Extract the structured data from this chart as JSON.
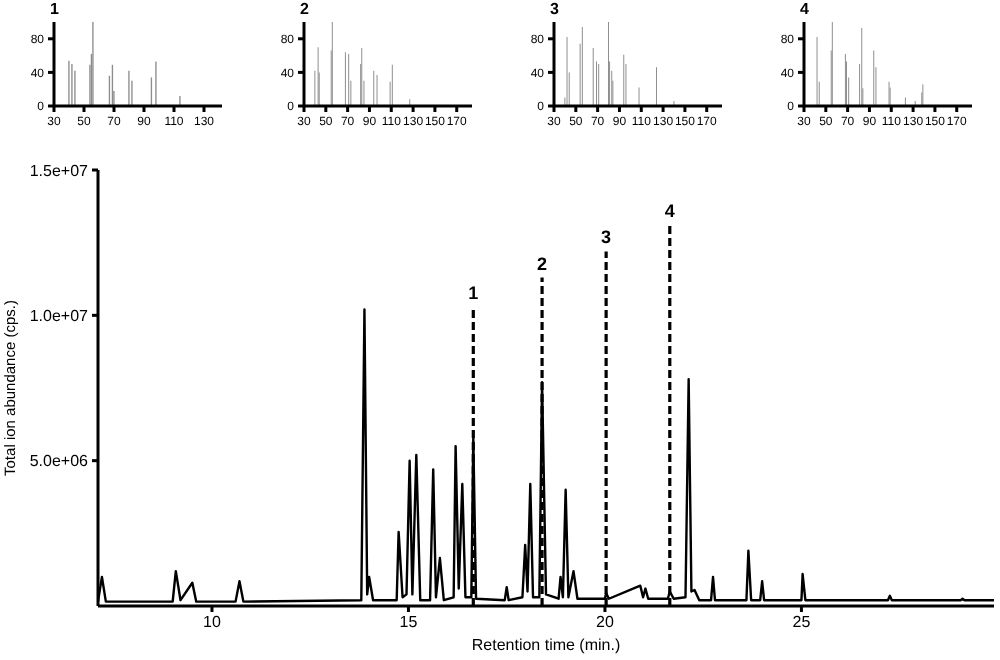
{
  "chart_data": [
    {
      "type": "bar",
      "title": "1",
      "x": [
        40,
        42,
        44,
        54,
        55,
        56,
        67,
        69,
        70,
        80,
        82,
        95,
        98,
        114
      ],
      "values": [
        54,
        50,
        42,
        49,
        62,
        100,
        36,
        49,
        18,
        42,
        30,
        34,
        53,
        12
      ],
      "color": "#8c8c8c",
      "xlim": [
        30,
        142
      ],
      "ylim": [
        0,
        100
      ],
      "xticks": [
        30,
        50,
        70,
        90,
        110,
        130
      ],
      "yticks": [
        0,
        40,
        80
      ]
    },
    {
      "type": "bar",
      "title": "2",
      "x": [
        40,
        43,
        44,
        55,
        56,
        68,
        71,
        73,
        82,
        83,
        85,
        94,
        97,
        109,
        111,
        127
      ],
      "values": [
        42,
        70,
        40,
        66,
        100,
        64,
        62,
        30,
        50,
        69,
        30,
        42,
        37,
        29,
        49,
        8
      ],
      "color": "#8c8c8c",
      "xlim": [
        30,
        184
      ],
      "ylim": [
        0,
        100
      ],
      "xticks": [
        30,
        50,
        70,
        90,
        110,
        130,
        150,
        170
      ],
      "yticks": [
        0,
        40,
        80
      ]
    },
    {
      "type": "bar",
      "title": "3",
      "x": [
        40,
        42,
        44,
        54,
        56,
        66,
        69,
        71,
        80,
        81,
        83,
        84,
        94,
        96,
        108,
        124,
        140
      ],
      "values": [
        10,
        82,
        40,
        74,
        94,
        69,
        53,
        50,
        100,
        53,
        42,
        30,
        61,
        50,
        22,
        46,
        6
      ],
      "color": "#8c8c8c",
      "xlim": [
        30,
        184
      ],
      "ylim": [
        0,
        100
      ],
      "xticks": [
        30,
        50,
        70,
        90,
        110,
        130,
        150,
        170
      ],
      "yticks": [
        0,
        40,
        80
      ]
    },
    {
      "type": "bar",
      "title": "4",
      "x": [
        42,
        44,
        55,
        56,
        68,
        69,
        71,
        81,
        83,
        84,
        94,
        96,
        108,
        109,
        123,
        132,
        138,
        139
      ],
      "values": [
        82,
        29,
        66,
        100,
        62,
        53,
        34,
        50,
        93,
        21,
        66,
        46,
        29,
        22,
        10,
        6,
        16,
        26
      ],
      "color": "#8c8c8c",
      "xlim": [
        30,
        184
      ],
      "ylim": [
        0,
        100
      ],
      "xticks": [
        30,
        50,
        70,
        90,
        110,
        130,
        150,
        170
      ],
      "yticks": [
        0,
        40,
        80
      ]
    },
    {
      "type": "line",
      "xlabel": "Retention time (min.)",
      "ylabel": "Total ion abundance (cps.)",
      "color": "#000000",
      "x": [
        7.1,
        7.2,
        7.3,
        9.0,
        9.08,
        9.2,
        9.5,
        9.6,
        10.6,
        10.7,
        10.8,
        13.8,
        13.88,
        13.95,
        14.0,
        14.1,
        14.7,
        14.75,
        14.85,
        14.95,
        15.03,
        15.1,
        15.2,
        15.3,
        15.55,
        15.63,
        15.7,
        15.8,
        15.9,
        16.15,
        16.2,
        16.28,
        16.37,
        16.45,
        16.6,
        16.65,
        16.72,
        17.45,
        17.5,
        17.55,
        17.9,
        17.97,
        18.03,
        18.1,
        18.17,
        18.33,
        18.4,
        18.5,
        18.82,
        18.87,
        18.93,
        19.0,
        19.07,
        19.2,
        19.3,
        20.0,
        20.03,
        20.1,
        20.9,
        20.97,
        21.03,
        21.1,
        21.6,
        21.65,
        21.75,
        22.05,
        22.13,
        22.2,
        22.28,
        22.4,
        22.7,
        22.75,
        22.8,
        23.6,
        23.65,
        23.72,
        23.95,
        24.0,
        24.05,
        25.0,
        25.03,
        25.1,
        27.2,
        27.25,
        27.3,
        29.05,
        29.1,
        29.15,
        29.9
      ],
      "values": [
        150000,
        1000000,
        150000,
        150000,
        1200000,
        200000,
        800000,
        150000,
        150000,
        850000,
        150000,
        200000,
        10200000,
        400000,
        1000000,
        200000,
        200000,
        2550000,
        300000,
        400000,
        5000000,
        400000,
        5200000,
        200000,
        200000,
        4700000,
        300000,
        1650000,
        200000,
        300000,
        5500000,
        600000,
        4200000,
        300000,
        300000,
        5800000,
        250000,
        200000,
        650000,
        200000,
        300000,
        2100000,
        500000,
        4200000,
        300000,
        300000,
        7700000,
        400000,
        250000,
        1000000,
        300000,
        4000000,
        300000,
        1200000,
        250000,
        250000,
        450000,
        250000,
        700000,
        300000,
        600000,
        250000,
        250000,
        500000,
        250000,
        300000,
        7800000,
        500000,
        550000,
        200000,
        200000,
        1000000,
        200000,
        200000,
        1900000,
        200000,
        200000,
        850000,
        200000,
        200000,
        1100000,
        200000,
        200000,
        350000,
        200000,
        200000,
        250000,
        200000,
        200000
      ],
      "xlim": [
        7.1,
        29.9
      ],
      "xticks": [
        10,
        15,
        20,
        25
      ],
      "ylim": [
        0,
        15000000
      ],
      "yticks": [
        {
          "value": 5000000,
          "label": "5.0e+06"
        },
        {
          "value": 10000000,
          "label": "1.0e+07"
        },
        {
          "value": 15000000,
          "label": "1.5e+07"
        }
      ],
      "ref_lines": [
        {
          "axis": "x",
          "value": 16.65,
          "color": "#000000",
          "line_style": "dashed"
        },
        {
          "axis": "x",
          "value": 18.4,
          "color": "#000000",
          "line_style": "dashed"
        },
        {
          "axis": "x",
          "value": 20.03,
          "color": "#000000",
          "line_style": "dashed"
        },
        {
          "axis": "x",
          "value": 21.65,
          "color": "#000000",
          "line_style": "dashed"
        }
      ],
      "annotations": [
        {
          "text": "1",
          "x": 16.65,
          "y": 10300000
        },
        {
          "text": "2",
          "x": 18.4,
          "y": 11300000
        },
        {
          "text": "3",
          "x": 20.03,
          "y": 12200000
        },
        {
          "text": "4",
          "x": 21.65,
          "y": 13100000
        }
      ]
    }
  ]
}
